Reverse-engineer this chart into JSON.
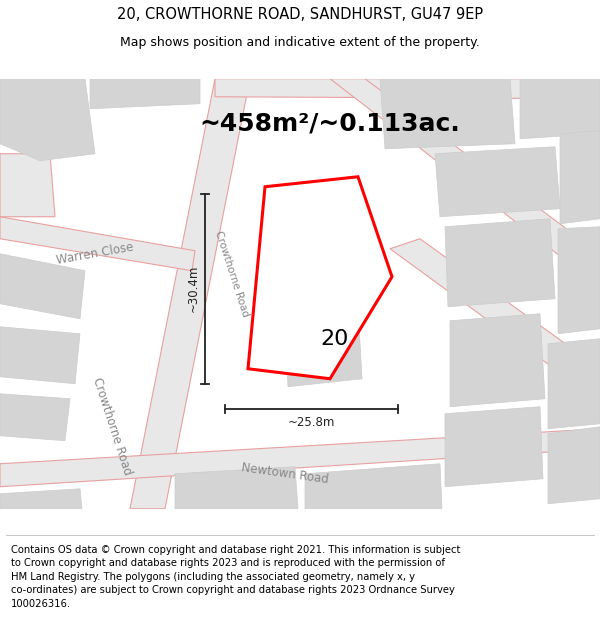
{
  "title": "20, CROWTHORNE ROAD, SANDHURST, GU47 9EP",
  "subtitle": "Map shows position and indicative extent of the property.",
  "area_text": "~458m²/~0.113ac.",
  "number_label": "20",
  "dim_vertical": "~30.4m",
  "dim_horizontal": "~25.8m",
  "footer_text": "Contains OS data © Crown copyright and database right 2021. This information is subject\nto Crown copyright and database rights 2023 and is reproduced with the permission of\nHM Land Registry. The polygons (including the associated geometry, namely x, y\nco-ordinates) are subject to Crown copyright and database rights 2023 Ordnance Survey\n100026316.",
  "map_bg": "#f8f8f8",
  "road_fill": "#e8e8e8",
  "road_stroke": "#e8a0a0",
  "building_fill": "#d4d4d4",
  "building_stroke": "#cccccc",
  "highlight_stroke": "#ff0000",
  "highlight_fill": "#ffffff",
  "dim_color": "#222222",
  "street_label_color": "#888888",
  "title_fontsize": 10.5,
  "subtitle_fontsize": 9,
  "area_fontsize": 18,
  "number_fontsize": 16,
  "dim_fontsize": 8.5,
  "footer_fontsize": 7.2,
  "street_fontsize": 8.5
}
